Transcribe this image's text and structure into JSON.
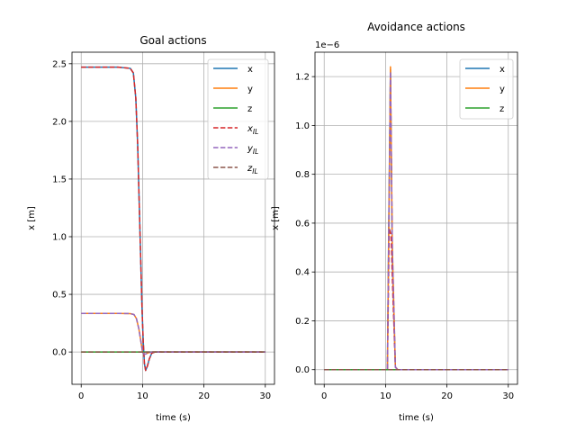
{
  "chart_data": [
    {
      "type": "line",
      "title": "Goal actions",
      "xlabel": "time (s)",
      "ylabel": "x [m]",
      "xlim": [
        -1.5,
        31.5
      ],
      "ylim": [
        -0.28,
        2.6
      ],
      "xticks": [
        0,
        10,
        20,
        30
      ],
      "xtick_labels": [
        "0",
        "10",
        "20",
        "30"
      ],
      "yticks": [
        0.0,
        0.5,
        1.0,
        1.5,
        2.0,
        2.5
      ],
      "ytick_labels": [
        "0.0",
        "0.5",
        "1.0",
        "1.5",
        "2.0",
        "2.5"
      ],
      "grid": true,
      "legend": "top-right",
      "series": [
        {
          "name": "x",
          "color": "#1f77b4",
          "dash": "solid",
          "x": [
            0,
            2,
            4,
            6,
            8,
            8.5,
            8.9,
            9.2,
            9.5,
            9.7,
            9.9,
            10.1,
            10.3,
            10.5,
            10.8,
            11.1,
            11.5,
            12,
            14,
            20,
            30
          ],
          "y": [
            2.47,
            2.47,
            2.47,
            2.47,
            2.46,
            2.42,
            2.2,
            1.8,
            1.2,
            0.8,
            0.4,
            0.1,
            -0.1,
            -0.16,
            -0.12,
            -0.06,
            -0.01,
            0,
            0,
            0,
            0
          ]
        },
        {
          "name": "y",
          "color": "#ff7f0e",
          "dash": "solid",
          "x": [
            0,
            2,
            4,
            6,
            8,
            8.6,
            9.0,
            9.4,
            9.7,
            10.0,
            10.3,
            10.6,
            11.0,
            11.5,
            12,
            14,
            20,
            30
          ],
          "y": [
            0.335,
            0.335,
            0.335,
            0.335,
            0.333,
            0.325,
            0.29,
            0.2,
            0.1,
            0.0,
            -0.02,
            -0.015,
            -0.005,
            0,
            0,
            0,
            0,
            0
          ]
        },
        {
          "name": "z",
          "color": "#2ca02c",
          "dash": "solid",
          "x": [
            0,
            10,
            20,
            30
          ],
          "y": [
            0,
            0,
            0,
            0
          ]
        },
        {
          "name": "x_IL",
          "label_main": "x",
          "label_sub": "IL",
          "color": "#d62728",
          "dash": "dashed",
          "x": [
            0,
            2,
            4,
            6,
            8,
            8.5,
            8.9,
            9.2,
            9.5,
            9.7,
            9.9,
            10.1,
            10.3,
            10.5,
            10.8,
            11.1,
            11.5,
            12,
            14,
            20,
            30
          ],
          "y": [
            2.47,
            2.47,
            2.47,
            2.47,
            2.46,
            2.42,
            2.2,
            1.8,
            1.2,
            0.8,
            0.4,
            0.1,
            -0.1,
            -0.16,
            -0.12,
            -0.06,
            -0.01,
            0,
            0,
            0,
            0
          ]
        },
        {
          "name": "y_IL",
          "label_main": "y",
          "label_sub": "IL",
          "color": "#9467bd",
          "dash": "dashed",
          "x": [
            0,
            2,
            4,
            6,
            8,
            8.6,
            9.0,
            9.4,
            9.7,
            10.0,
            10.3,
            10.6,
            11.0,
            11.5,
            12,
            14,
            20,
            30
          ],
          "y": [
            0.335,
            0.335,
            0.335,
            0.335,
            0.333,
            0.325,
            0.29,
            0.2,
            0.1,
            0.0,
            -0.02,
            -0.015,
            -0.005,
            0,
            0,
            0,
            0,
            0
          ]
        },
        {
          "name": "z_IL",
          "label_main": "z",
          "label_sub": "IL",
          "color": "#8c564b",
          "dash": "dashed",
          "x": [
            0,
            10,
            20,
            30
          ],
          "y": [
            0,
            0,
            0,
            0
          ]
        }
      ]
    },
    {
      "type": "line",
      "title": "Avoidance actions",
      "offset_text": "1e−6",
      "xlabel": "time (s)",
      "ylabel": "x [m]",
      "xlim": [
        -1.5,
        31.5
      ],
      "ylim": [
        -0.06,
        1.3
      ],
      "xticks": [
        0,
        10,
        20,
        30
      ],
      "xtick_labels": [
        "0",
        "10",
        "20",
        "30"
      ],
      "yticks": [
        0.0,
        0.2,
        0.4,
        0.6,
        0.8,
        1.0,
        1.2
      ],
      "ytick_labels": [
        "0.0",
        "0.2",
        "0.4",
        "0.6",
        "0.8",
        "1.0",
        "1.2"
      ],
      "grid": true,
      "legend": "top-right",
      "series": [
        {
          "name": "x",
          "color": "#1f77b4",
          "dash": "solid",
          "x": [
            0,
            10.3,
            10.5,
            10.8,
            11.1,
            11.6,
            12,
            20,
            30
          ],
          "y": [
            0,
            0,
            0.55,
            1.23,
            0.45,
            0.01,
            0,
            0,
            0
          ]
        },
        {
          "name": "y",
          "color": "#ff7f0e",
          "dash": "solid",
          "x": [
            0,
            10.3,
            10.5,
            10.8,
            11.1,
            11.6,
            12,
            20,
            30
          ],
          "y": [
            0,
            0,
            0.5,
            1.24,
            0.5,
            0.01,
            0,
            0,
            0
          ]
        },
        {
          "name": "z",
          "color": "#2ca02c",
          "dash": "solid",
          "x": [
            0,
            10,
            20,
            30
          ],
          "y": [
            0,
            0,
            0,
            0
          ]
        },
        {
          "name": "x_IL",
          "color": "#d62728",
          "dash": "dashed",
          "in_legend": false,
          "x": [
            0,
            10.3,
            10.6,
            10.9,
            11.2,
            11.6,
            12,
            20,
            30
          ],
          "y": [
            0,
            0,
            0.58,
            0.55,
            0.3,
            0.01,
            0,
            0,
            0
          ]
        },
        {
          "name": "y_IL",
          "color": "#9467bd",
          "dash": "dashed",
          "in_legend": false,
          "x": [
            0,
            10.3,
            10.5,
            10.8,
            11.1,
            11.6,
            12,
            20,
            30
          ],
          "y": [
            0,
            0,
            0.5,
            1.22,
            0.5,
            0.01,
            0,
            0,
            0
          ]
        },
        {
          "name": "z_IL",
          "color": "#8c564b",
          "dash": "dashed",
          "in_legend": false,
          "x": [
            0,
            10,
            20,
            30
          ],
          "y": [
            0,
            0,
            0,
            0
          ]
        }
      ]
    }
  ]
}
